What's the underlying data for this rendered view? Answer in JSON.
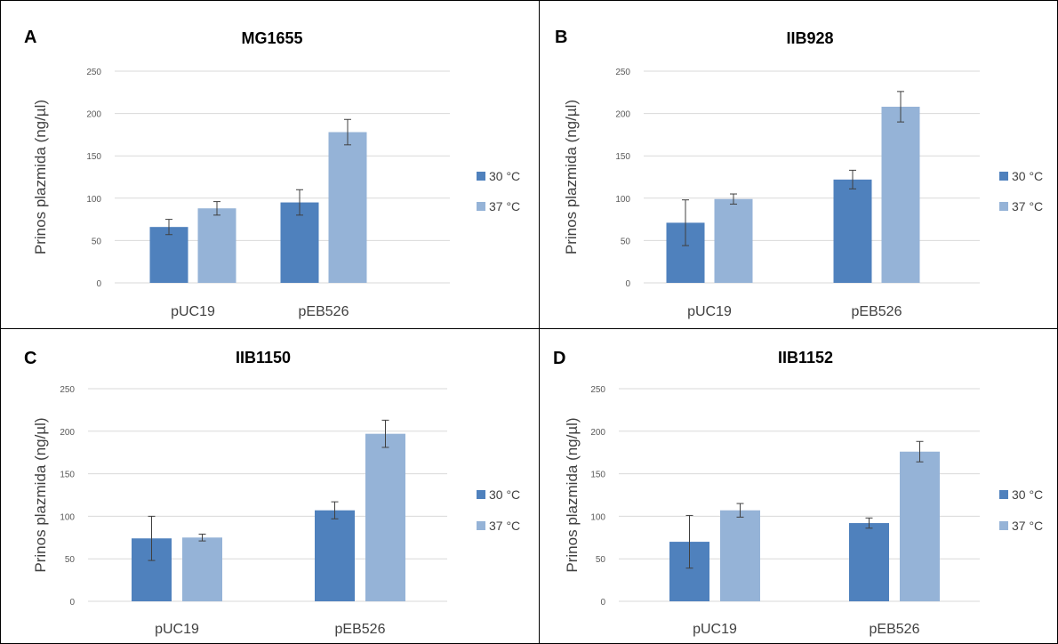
{
  "panels": [
    {
      "letter": "A",
      "title": "MG1655"
    },
    {
      "letter": "B",
      "title": "IIB928"
    },
    {
      "letter": "C",
      "title": "IIB1150"
    },
    {
      "letter": "D",
      "title": "IIB1152"
    }
  ],
  "colors": {
    "series_30": "#4f81bd",
    "series_37": "#95b3d7",
    "gridline": "#d9d9d9",
    "errorbar": "#404040"
  },
  "chart_data": [
    {
      "type": "bar",
      "title": "MG1655",
      "categories": [
        "pUC19",
        "pEB526"
      ],
      "ylabel": "Prinos plazmida (ng/µl)",
      "ylim": [
        0,
        250
      ],
      "yticks": [
        0,
        50,
        100,
        150,
        200,
        250
      ],
      "grid": true,
      "legend_position": "right",
      "series": [
        {
          "name": "30 °C",
          "values": [
            66,
            95
          ],
          "errors": [
            9,
            15
          ]
        },
        {
          "name": "37 °C",
          "values": [
            88,
            178
          ],
          "errors": [
            8,
            15
          ]
        }
      ]
    },
    {
      "type": "bar",
      "title": "IIB928",
      "categories": [
        "pUC19",
        "pEB526"
      ],
      "ylabel": "Prinos plazmida (ng/µl)",
      "ylim": [
        0,
        250
      ],
      "yticks": [
        0,
        50,
        100,
        150,
        200,
        250
      ],
      "grid": true,
      "legend_position": "right",
      "series": [
        {
          "name": "30 °C",
          "values": [
            71,
            122
          ],
          "errors": [
            27,
            11
          ]
        },
        {
          "name": "37 °C",
          "values": [
            99,
            208
          ],
          "errors": [
            6,
            18
          ]
        }
      ]
    },
    {
      "type": "bar",
      "title": "IIB1150",
      "categories": [
        "pUC19",
        "pEB526"
      ],
      "ylabel": "Prinos plazmida (ng/µl)",
      "ylim": [
        0,
        250
      ],
      "yticks": [
        0,
        50,
        100,
        150,
        200,
        250
      ],
      "grid": true,
      "legend_position": "right",
      "series": [
        {
          "name": "30 °C",
          "values": [
            74,
            107
          ],
          "errors": [
            26,
            10
          ]
        },
        {
          "name": "37 °C",
          "values": [
            75,
            197
          ],
          "errors": [
            4,
            16
          ]
        }
      ]
    },
    {
      "type": "bar",
      "title": "IIB1152",
      "categories": [
        "pUC19",
        "pEB526"
      ],
      "ylabel": "Prinos plazmida (ng/µl)",
      "ylim": [
        0,
        250
      ],
      "yticks": [
        0,
        50,
        100,
        150,
        200,
        250
      ],
      "grid": true,
      "legend_position": "right",
      "series": [
        {
          "name": "30 °C",
          "values": [
            70,
            92
          ],
          "errors": [
            31,
            6
          ]
        },
        {
          "name": "37 °C",
          "values": [
            107,
            176
          ],
          "errors": [
            8,
            12
          ]
        }
      ]
    }
  ]
}
